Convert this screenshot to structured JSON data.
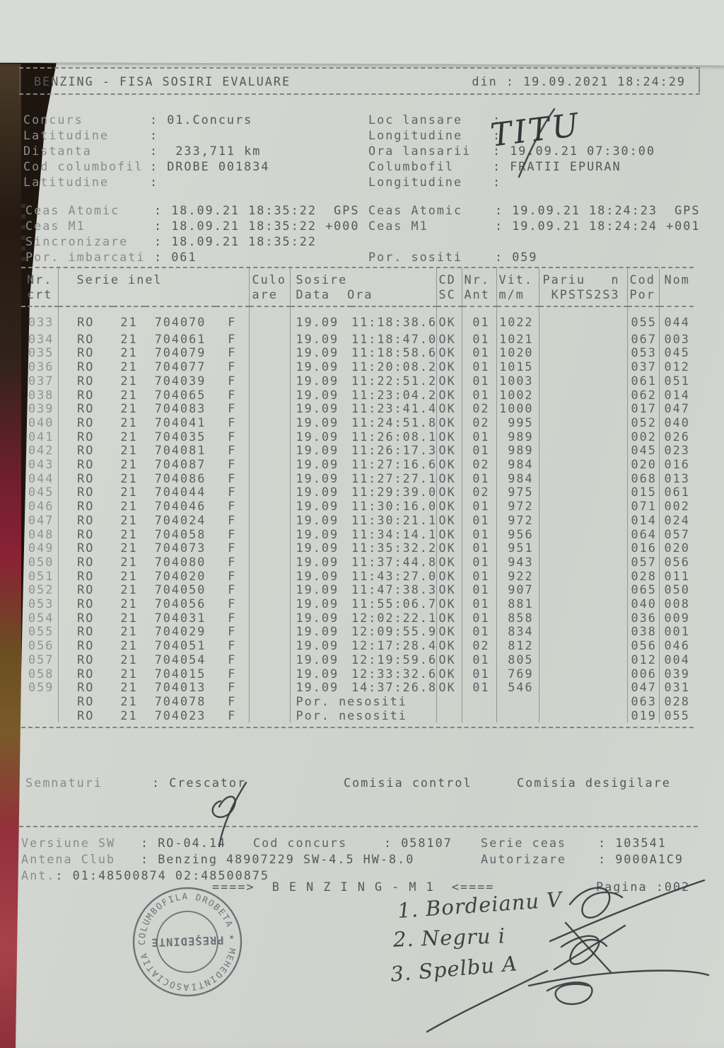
{
  "header": {
    "title": "BENZING - FISA SOSIRI EVALUARE",
    "printed": "din : 19.09.2021 18:24:29"
  },
  "info": {
    "rows": [
      {
        "l_label": "Concurs",
        "l_value": ": 01.Concurs",
        "r_label": "Loc lansare",
        "r_value": ":"
      },
      {
        "l_label": "Latitudine",
        "l_value": ":",
        "r_label": "Longitudine",
        "r_value": ":"
      },
      {
        "l_label": "Distanta",
        "l_value": ":  233,711 km",
        "r_label": "Ora lansarii",
        "r_value": ": 19.09.21 07:30:00"
      },
      {
        "l_label": "Cod columbofil",
        "l_value": ": DROBE 001834",
        "r_label": "Columbofil",
        "r_value": ": FRATII EPURAN"
      },
      {
        "l_label": "Latitudine",
        "l_value": ":",
        "r_label": "Longitudine",
        "r_value": ":"
      }
    ]
  },
  "clock": {
    "rows": [
      {
        "l_label": "Ceas Atomic",
        "l_value": ": 18.09.21 18:35:22  GPS",
        "r_label": "Ceas Atomic",
        "r_value": ": 19.09.21 18:24:23  GPS"
      },
      {
        "l_label": "Ceas M1",
        "l_value": ": 18.09.21 18:35:22 +000",
        "r_label": "Ceas M1",
        "r_value": ": 19.09.21 18:24:24 +001"
      },
      {
        "l_label": "Sincronizare",
        "l_value": ": 18.09.21 18:35:22",
        "r_label": "",
        "r_value": ""
      },
      {
        "l_label": "Por. imbarcati",
        "l_value": ": 061",
        "r_label": "Por. sositi",
        "r_value": ": 059"
      }
    ]
  },
  "table": {
    "header": [
      {
        "text": "Nr.\ncrt",
        "span": 1
      },
      {
        "text": "Serie inel",
        "span": 4
      },
      {
        "text": "Culo\nare",
        "span": 1
      },
      {
        "text": "Sosire\nData  Ora",
        "span": 2
      },
      {
        "text": "CD\nSC",
        "span": 1
      },
      {
        "text": "Nr.\nAnt",
        "span": 1
      },
      {
        "text": "Vit.\nm/m",
        "span": 1
      },
      {
        "text": "Pariu   n\n KPSTS2S3",
        "span": 1
      },
      {
        "text": "Cod\nPor",
        "span": 1
      },
      {
        "text": "Nom",
        "span": 1
      }
    ],
    "rows": [
      [
        "033",
        "RO",
        "21",
        "704070",
        "F",
        "",
        "19.09",
        "11:18:38.6",
        "OK",
        "01",
        "1022",
        "",
        "055",
        "044"
      ],
      [
        "034",
        "RO",
        "21",
        "704061",
        "F",
        "",
        "19.09",
        "11:18:47.0",
        "OK",
        "01",
        "1021",
        "",
        "067",
        "003"
      ],
      [
        "035",
        "RO",
        "21",
        "704079",
        "F",
        "",
        "19.09",
        "11:18:58.6",
        "OK",
        "01",
        "1020",
        "",
        "053",
        "045"
      ],
      [
        "036",
        "RO",
        "21",
        "704077",
        "F",
        "",
        "19.09",
        "11:20:08.2",
        "OK",
        "01",
        "1015",
        "",
        "037",
        "012"
      ],
      [
        "037",
        "RO",
        "21",
        "704039",
        "F",
        "",
        "19.09",
        "11:22:51.2",
        "OK",
        "01",
        "1003",
        "",
        "061",
        "051"
      ],
      [
        "038",
        "RO",
        "21",
        "704065",
        "F",
        "",
        "19.09",
        "11:23:04.2",
        "OK",
        "01",
        "1002",
        "",
        "062",
        "014"
      ],
      [
        "039",
        "RO",
        "21",
        "704083",
        "F",
        "",
        "19.09",
        "11:23:41.4",
        "OK",
        "02",
        "1000",
        "",
        "017",
        "047"
      ],
      [
        "040",
        "RO",
        "21",
        "704041",
        "F",
        "",
        "19.09",
        "11:24:51.8",
        "OK",
        "02",
        "995",
        "",
        "052",
        "040"
      ],
      [
        "041",
        "RO",
        "21",
        "704035",
        "F",
        "",
        "19.09",
        "11:26:08.1",
        "OK",
        "01",
        "989",
        "",
        "002",
        "026"
      ],
      [
        "042",
        "RO",
        "21",
        "704081",
        "F",
        "",
        "19.09",
        "11:26:17.3",
        "OK",
        "01",
        "989",
        "",
        "045",
        "023"
      ],
      [
        "043",
        "RO",
        "21",
        "704087",
        "F",
        "",
        "19.09",
        "11:27:16.6",
        "OK",
        "02",
        "984",
        "",
        "020",
        "016"
      ],
      [
        "044",
        "RO",
        "21",
        "704086",
        "F",
        "",
        "19.09",
        "11:27:27.1",
        "OK",
        "01",
        "984",
        "",
        "068",
        "013"
      ],
      [
        "045",
        "RO",
        "21",
        "704044",
        "F",
        "",
        "19.09",
        "11:29:39.0",
        "OK",
        "02",
        "975",
        "",
        "015",
        "061"
      ],
      [
        "046",
        "RO",
        "21",
        "704046",
        "F",
        "",
        "19.09",
        "11:30:16.0",
        "OK",
        "01",
        "972",
        "",
        "071",
        "002"
      ],
      [
        "047",
        "RO",
        "21",
        "704024",
        "F",
        "",
        "19.09",
        "11:30:21.1",
        "OK",
        "01",
        "972",
        "",
        "014",
        "024"
      ],
      [
        "048",
        "RO",
        "21",
        "704058",
        "F",
        "",
        "19.09",
        "11:34:14.1",
        "OK",
        "01",
        "956",
        "",
        "064",
        "057"
      ],
      [
        "049",
        "RO",
        "21",
        "704073",
        "F",
        "",
        "19.09",
        "11:35:32.2",
        "OK",
        "01",
        "951",
        "",
        "016",
        "020"
      ],
      [
        "050",
        "RO",
        "21",
        "704080",
        "F",
        "",
        "19.09",
        "11:37:44.8",
        "OK",
        "01",
        "943",
        "",
        "057",
        "056"
      ],
      [
        "051",
        "RO",
        "21",
        "704020",
        "F",
        "",
        "19.09",
        "11:43:27.0",
        "OK",
        "01",
        "922",
        "",
        "028",
        "011"
      ],
      [
        "052",
        "RO",
        "21",
        "704050",
        "F",
        "",
        "19.09",
        "11:47:38.3",
        "OK",
        "01",
        "907",
        "",
        "065",
        "050"
      ],
      [
        "053",
        "RO",
        "21",
        "704056",
        "F",
        "",
        "19.09",
        "11:55:06.7",
        "OK",
        "01",
        "881",
        "",
        "040",
        "008"
      ],
      [
        "054",
        "RO",
        "21",
        "704031",
        "F",
        "",
        "19.09",
        "12:02:22.1",
        "OK",
        "01",
        "858",
        "",
        "036",
        "009"
      ],
      [
        "055",
        "RO",
        "21",
        "704029",
        "F",
        "",
        "19.09",
        "12:09:55.9",
        "OK",
        "01",
        "834",
        "",
        "038",
        "001"
      ],
      [
        "056",
        "RO",
        "21",
        "704051",
        "F",
        "",
        "19.09",
        "12:17:28.4",
        "OK",
        "02",
        "812",
        "",
        "056",
        "046"
      ],
      [
        "057",
        "RO",
        "21",
        "704054",
        "F",
        "",
        "19.09",
        "12:19:59.6",
        "OK",
        "01",
        "805",
        "",
        "012",
        "004"
      ],
      [
        "058",
        "RO",
        "21",
        "704015",
        "F",
        "",
        "19.09",
        "12:33:32.6",
        "OK",
        "01",
        "769",
        "",
        "006",
        "039"
      ],
      [
        "059",
        "RO",
        "21",
        "704013",
        "F",
        "",
        "19.09",
        "14:37:26.8",
        "OK",
        "01",
        "546",
        "",
        "047",
        "031"
      ],
      [
        "",
        "RO",
        "21",
        "704078",
        "F",
        "",
        "Por. nesositi",
        "",
        "",
        "",
        "",
        "",
        "063",
        "028"
      ],
      [
        "",
        "RO",
        "21",
        "704023",
        "F",
        "",
        "Por. nesositi",
        "",
        "",
        "",
        "",
        "",
        "019",
        "055"
      ]
    ]
  },
  "signatures": {
    "label": "Semnaturi",
    "crescator": ": Crescator",
    "control": "Comisia control",
    "desigilare": "Comisia desigilare"
  },
  "footer": {
    "rows": [
      [
        {
          "label": "Versiune SW",
          "value": ": RO-04.14"
        },
        {
          "label": "Cod concurs",
          "value": ": 058107"
        },
        {
          "label": "Serie ceas",
          "value": ": 103541"
        }
      ],
      [
        {
          "label": "Antena Club",
          "value": ": Benzing 48907229 SW-4.5 HW-8.0"
        },
        {
          "label": "Autorizare",
          "value": ": 9000A1C9"
        }
      ],
      [
        {
          "label": "Ant.",
          "value": ": 01:48500874 02:48500875"
        }
      ]
    ],
    "benzing": "====>  B E N Z I N G - M 1  <====",
    "page": "Pagina :002"
  },
  "handwriting": {
    "loc_lansare": "TITU",
    "names": [
      "1. Bordeianu V",
      "2. Negru i",
      "3. Spelbu A"
    ]
  },
  "stamp": {
    "ring": "ASOCIATIA COLUMBOFILA DROBETA ★ MEHEDINTI ★",
    "center": "PREŞEDINTE"
  },
  "colors": {
    "paper": "#d2d4cf",
    "print": "#5c6064",
    "faded_print": "#878c8e",
    "ink": "#33363a",
    "stamp": "#525a63",
    "backing_red": "#8a2135"
  }
}
